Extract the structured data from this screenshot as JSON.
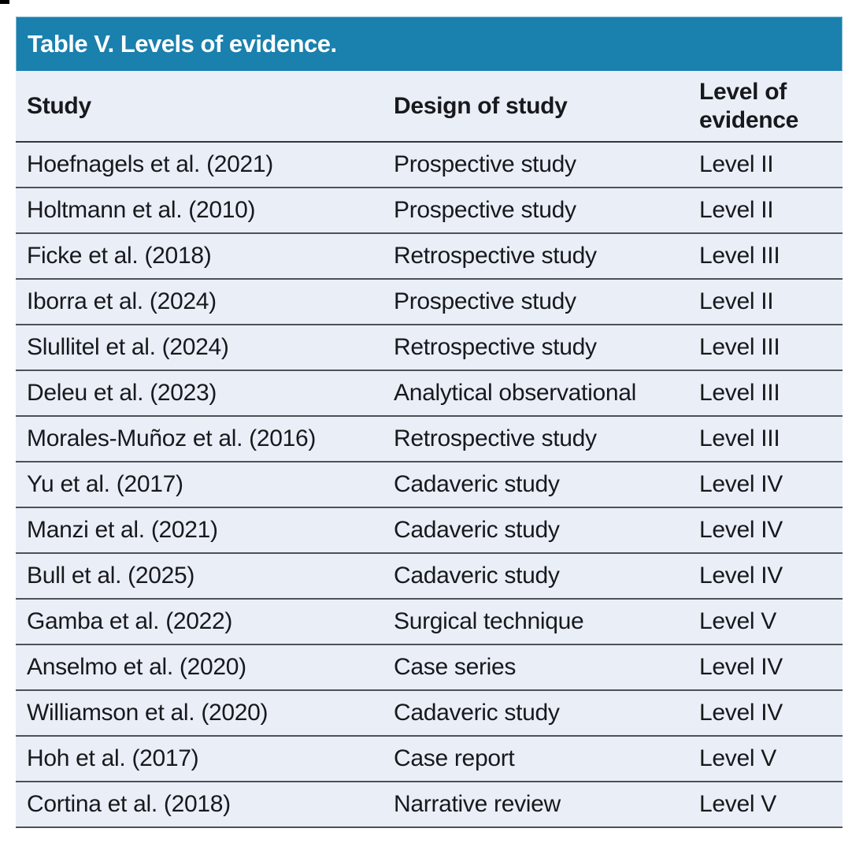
{
  "table": {
    "title": "Table V. Levels of evidence.",
    "headers": {
      "study": "Study",
      "design": "Design of study",
      "level": "Level of evidence"
    },
    "rows": [
      {
        "study": "Hoefnagels et al. (2021)",
        "design": "Prospective study",
        "level": "Level II"
      },
      {
        "study": "Holtmann et al. (2010)",
        "design": "Prospective study",
        "level": "Level II"
      },
      {
        "study": "Ficke et al. (2018)",
        "design": "Retrospective study",
        "level": "Level III"
      },
      {
        "study": "Iborra et al. (2024)",
        "design": "Prospective study",
        "level": "Level II"
      },
      {
        "study": "Slullitel et al. (2024)",
        "design": "Retrospective study",
        "level": "Level III"
      },
      {
        "study": "Deleu et al. (2023)",
        "design": "Analytical observational",
        "level": "Level III"
      },
      {
        "study": "Morales-Muñoz et al. (2016)",
        "design": "Retrospective study",
        "level": "Level III"
      },
      {
        "study": "Yu et al. (2017)",
        "design": "Cadaveric study",
        "level": "Level IV"
      },
      {
        "study": "Manzi et al. (2021)",
        "design": "Cadaveric study",
        "level": "Level IV"
      },
      {
        "study": "Bull et al. (2025)",
        "design": "Cadaveric study",
        "level": "Level IV"
      },
      {
        "study": "Gamba et al. (2022)",
        "design": "Surgical technique",
        "level": "Level V"
      },
      {
        "study": "Anselmo et al. (2020)",
        "design": "Case series",
        "level": "Level IV"
      },
      {
        "study": "Williamson et al. (2020)",
        "design": "Cadaveric study",
        "level": "Level IV"
      },
      {
        "study": "Hoh et al. (2017)",
        "design": "Case report",
        "level": "Level V"
      },
      {
        "study": "Cortina et al. (2018)",
        "design": "Narrative review",
        "level": "Level V"
      }
    ]
  },
  "colors": {
    "title_bar_bg": "#1a80ad",
    "title_bar_edge": "#7fb5cf",
    "title_text": "#ffffff",
    "table_bg": "#eaeef7",
    "header_rule": "#35393c",
    "row_rule": "#4c5256",
    "text": "#17191c"
  }
}
